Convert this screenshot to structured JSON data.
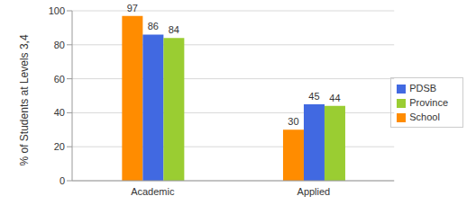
{
  "chart_data": {
    "type": "bar",
    "y_label": "% of Students at Levels 3,4",
    "categories": [
      "Academic",
      "Applied"
    ],
    "series": [
      {
        "name": "School",
        "color": "#ff8c00",
        "values": [
          97,
          30
        ]
      },
      {
        "name": "PDSB",
        "color": "#4169e1",
        "values": [
          86,
          45
        ]
      },
      {
        "name": "Province",
        "color": "#9acd32",
        "values": [
          84,
          44
        ]
      }
    ],
    "ylim": [
      0,
      100
    ],
    "yticks": [
      0,
      20,
      40,
      60,
      80,
      100
    ],
    "grid": true,
    "legend": "right",
    "data_labels": true
  }
}
